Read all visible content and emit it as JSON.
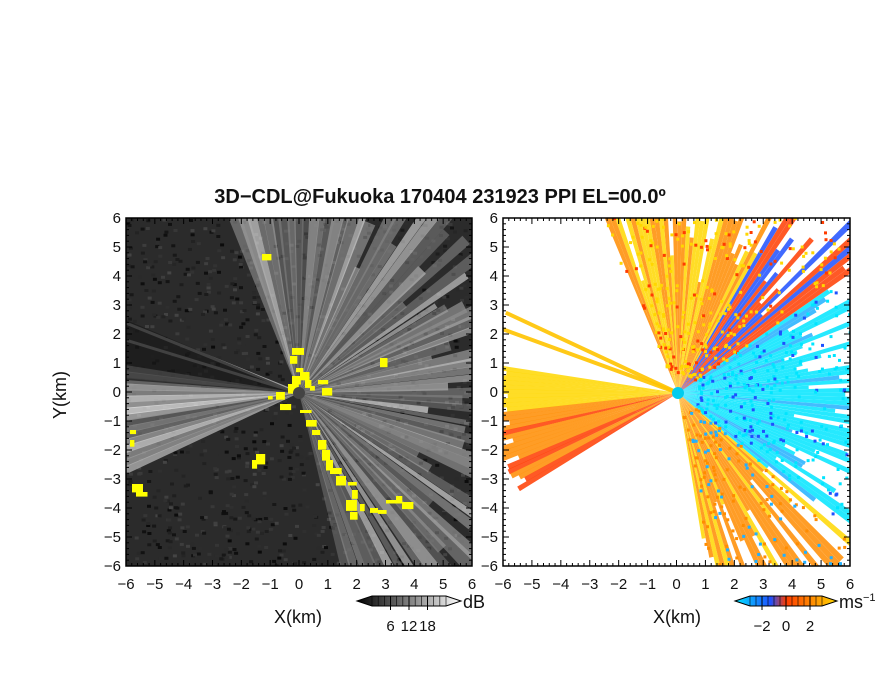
{
  "title": "3D−CDL@Fukuoka 170404 231923 PPI EL=00.0º",
  "chart_data": [
    {
      "type": "heatmap",
      "variable": "reflectivity",
      "xlabel": "X(km)",
      "ylabel": "Y(km)",
      "xlim": [
        -6,
        6
      ],
      "ylim": [
        -6,
        6
      ],
      "xticks": [
        "−6",
        "−5",
        "−4",
        "−3",
        "−2",
        "−1",
        "0",
        "1",
        "2",
        "3",
        "4",
        "5",
        "6"
      ],
      "yticks": [
        "6",
        "5",
        "4",
        "3",
        "2",
        "1",
        "0",
        "−1",
        "−2",
        "−3",
        "−4",
        "−5",
        "−6"
      ],
      "colorbar": {
        "unit": "dB",
        "ticks": [
          "6",
          "12",
          "18"
        ],
        "range": [
          0,
          24
        ],
        "colors": [
          "#000000",
          "#ffffff"
        ],
        "clutter_color": "#ffff00"
      }
    },
    {
      "type": "heatmap",
      "variable": "radial velocity",
      "xlabel": "X(km)",
      "ylabel": "",
      "xlim": [
        -6,
        6
      ],
      "ylim": [
        -6,
        6
      ],
      "xticks": [
        "−6",
        "−5",
        "−4",
        "−3",
        "−2",
        "−1",
        "0",
        "1",
        "2",
        "3",
        "4",
        "5",
        "6"
      ],
      "yticks": [
        "6",
        "5",
        "4",
        "3",
        "2",
        "1",
        "0",
        "−1",
        "−2",
        "−3",
        "−4",
        "−5",
        "−6"
      ],
      "colorbar": {
        "unit": "ms",
        "unit_exponent": "−1",
        "ticks": [
          "−2",
          "0",
          "2"
        ],
        "range": [
          -3,
          3
        ],
        "colors": [
          "#00e5ff",
          "#1e50ff",
          "#ff3c00",
          "#ffd700"
        ]
      }
    }
  ]
}
